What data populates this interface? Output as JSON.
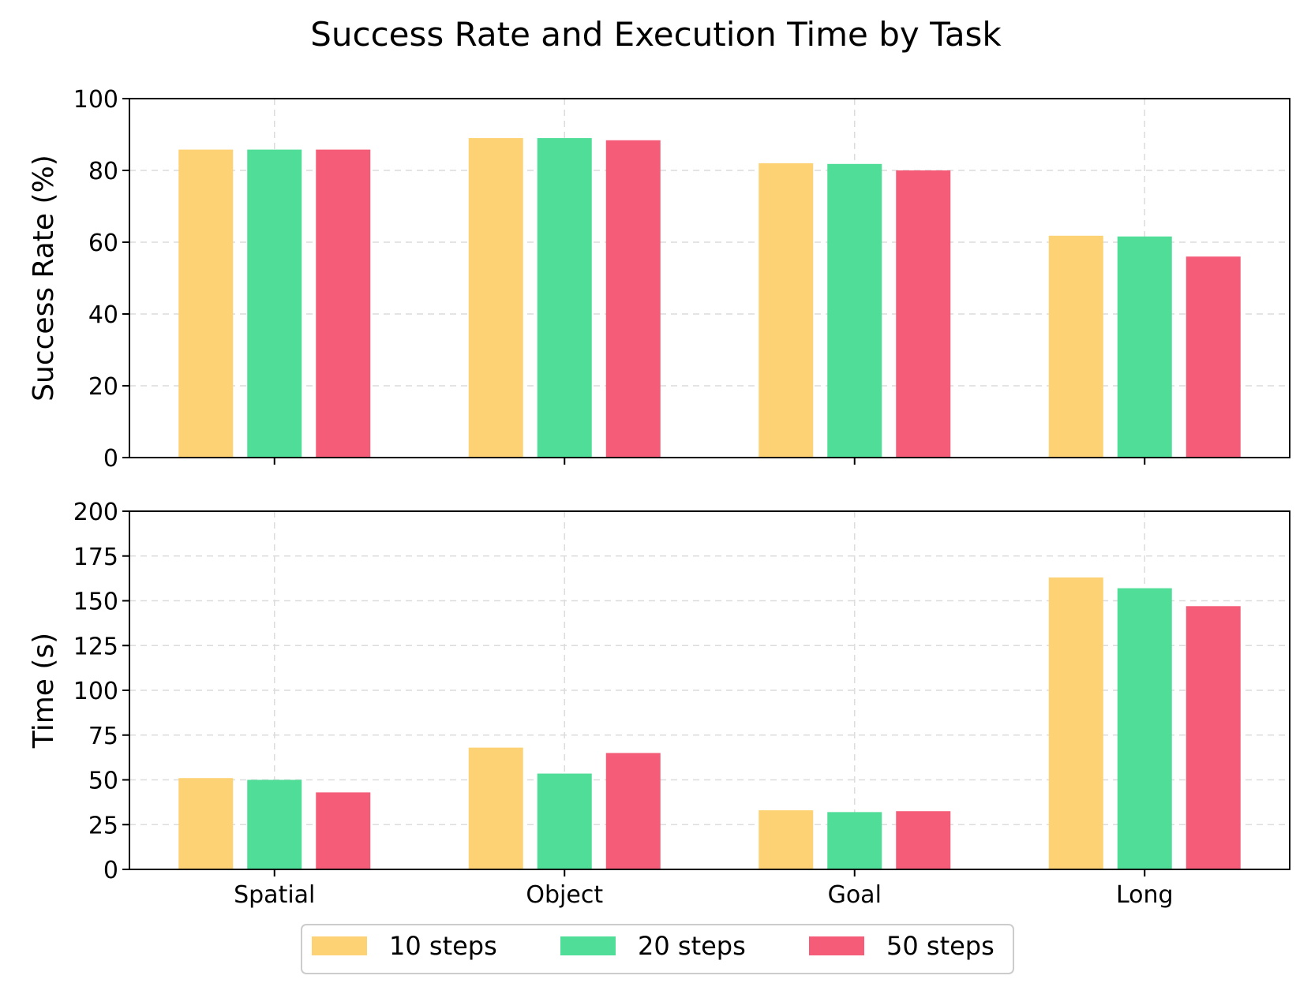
{
  "chart_data": {
    "title": "Success Rate and Execution Time by Task",
    "categories": [
      "Spatial",
      "Object",
      "Goal",
      "Long"
    ],
    "legend": {
      "position": "bottom-center"
    },
    "colors": {
      "10 steps": "#fdd274",
      "20 steps": "#50dd98",
      "50 steps": "#f55c78"
    },
    "subplots": [
      {
        "id": "success",
        "type": "bar",
        "ylabel": "Success Rate (%)",
        "ylim": [
          0,
          100
        ],
        "yticks": [
          0,
          20,
          40,
          60,
          80,
          100
        ],
        "grid": true,
        "series": [
          {
            "name": "10 steps",
            "values": [
              85.8,
              89.0,
              82.0,
              61.8
            ]
          },
          {
            "name": "20 steps",
            "values": [
              85.8,
              89.0,
              81.8,
              61.6
            ]
          },
          {
            "name": "50 steps",
            "values": [
              85.8,
              88.4,
              80.0,
              56.0
            ]
          }
        ]
      },
      {
        "id": "time",
        "type": "bar",
        "ylabel": "Time (s)",
        "ylim": [
          0,
          200
        ],
        "yticks": [
          0,
          25,
          50,
          75,
          100,
          125,
          150,
          175,
          200
        ],
        "grid": true,
        "series": [
          {
            "name": "10 steps",
            "values": [
              51.0,
              68.0,
              33.0,
              163.0
            ]
          },
          {
            "name": "20 steps",
            "values": [
              50.0,
              53.5,
              32.0,
              157.0
            ]
          },
          {
            "name": "50 steps",
            "values": [
              43.0,
              65.0,
              32.5,
              147.0
            ]
          }
        ]
      }
    ]
  }
}
